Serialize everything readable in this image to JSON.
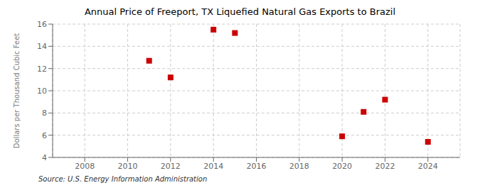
{
  "chart_data": {
    "type": "scatter",
    "title": "Annual Price of Freeport, TX Liquefied Natural Gas Exports to Brazil",
    "ylabel": "Dollars per Thousand Cubic Feet",
    "annotation": "Source: U.S. Energy Information Administration",
    "x": [
      2011,
      2012,
      2014,
      2015,
      2020,
      2021,
      2022,
      2024
    ],
    "values": [
      12.7,
      11.2,
      15.5,
      15.2,
      5.9,
      8.1,
      9.2,
      5.4
    ],
    "xlim": [
      2006.5,
      2025.5
    ],
    "ylim": [
      4,
      16
    ],
    "xticks": [
      2008,
      2010,
      2012,
      2014,
      2016,
      2018,
      2020,
      2022,
      2024
    ],
    "yticks": [
      4,
      6,
      8,
      10,
      12,
      14,
      16
    ],
    "color": "#cc0000",
    "marker": "square",
    "grid": true
  }
}
